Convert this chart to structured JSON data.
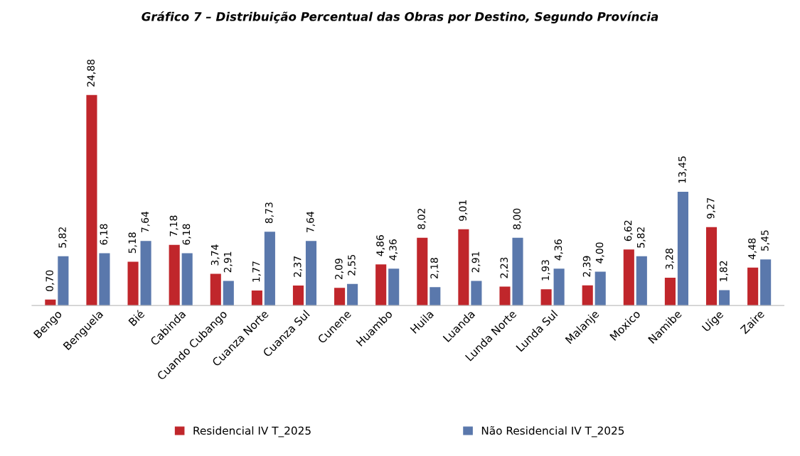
{
  "chart_data": {
    "type": "bar",
    "title": "Gráfico 7 – Distribuição Percentual das Obras por Destino, Segundo Província",
    "categories": [
      "Bengo",
      "Benguela",
      "Bié",
      "Cabinda",
      "Cuando Cubango",
      "Cuanza Norte",
      "Cuanza Sul",
      "Cunene",
      "Huambo",
      "Huila",
      "Luanda",
      "Lunda Norte",
      "Lunda Sul",
      "Malanje",
      "Moxico",
      "Namibe",
      "Uíge",
      "Zaire"
    ],
    "series": [
      {
        "name": "Residencial IV T_2025",
        "color": "#c0262b",
        "values": [
          0.7,
          24.88,
          5.18,
          7.18,
          3.74,
          1.77,
          2.37,
          2.09,
          4.86,
          8.02,
          9.01,
          2.23,
          1.93,
          2.39,
          6.62,
          3.28,
          9.27,
          4.48
        ],
        "value_labels": [
          "0,70",
          "24,88",
          "5,18",
          "7,18",
          "3,74",
          "1,77",
          "2,37",
          "2,09",
          "4,86",
          "8,02",
          "9,01",
          "2,23",
          "1,93",
          "2,39",
          "6,62",
          "3,28",
          "9,27",
          "4,48"
        ]
      },
      {
        "name": "Não Residencial IV T_2025",
        "color": "#5a78ac",
        "values": [
          5.82,
          6.18,
          7.64,
          6.18,
          2.91,
          8.73,
          7.64,
          2.55,
          4.36,
          2.18,
          2.91,
          8.0,
          4.36,
          4.0,
          5.82,
          13.45,
          1.82,
          5.45
        ],
        "value_labels": [
          "5,82",
          "6,18",
          "7,64",
          "6,18",
          "2,91",
          "8,73",
          "7,64",
          "2,55",
          "4,36",
          "2,18",
          "2,91",
          "8,00",
          "4,36",
          "4,00",
          "5,82",
          "13,45",
          "1,82",
          "5,45"
        ]
      }
    ],
    "grid": false,
    "legend": "bottom"
  }
}
